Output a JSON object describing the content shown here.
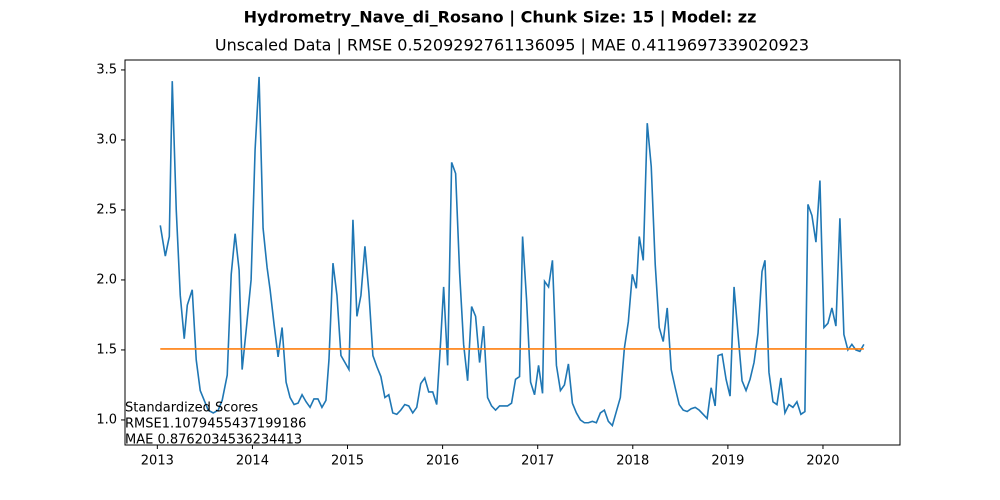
{
  "chart_data": {
    "type": "line",
    "title": "Hydrometry_Nave_di_Rosano | Chunk Size: 15 | Model: zz",
    "subtitle": "Unscaled Data | RMSE 0.5209292761136095 | MAE 0.4119697339020923",
    "annotations": [
      "Standardized Scores",
      "RMSE1.1079455437199186",
      "MAE 0.8762034536234413"
    ],
    "xlim": [
      2012.66,
      2020.81
    ],
    "xticks": [
      2013,
      2014,
      2015,
      2016,
      2017,
      2018,
      2019,
      2020
    ],
    "ylim": [
      0.821,
      3.571
    ],
    "yticks": [
      {
        "value": 1,
        "label": "1.0"
      },
      1.5,
      {
        "value": 2,
        "label": "2.0"
      },
      2.5,
      {
        "value": 3,
        "label": "3.0"
      },
      3.5
    ],
    "grid": false,
    "series": [
      {
        "color": "#1f77b4",
        "x": [
          2013.031,
          2013.084,
          2013.126,
          2013.157,
          2013.199,
          2013.241,
          2013.283,
          2013.315,
          2013.367,
          2013.409,
          2013.451,
          2013.493,
          2013.535,
          2013.588,
          2013.64,
          2013.682,
          2013.735,
          2013.777,
          2013.818,
          2013.86,
          2013.892,
          2013.934,
          2013.986,
          2014.028,
          2014.07,
          2014.112,
          2014.154,
          2014.186,
          2014.228,
          2014.27,
          2014.312,
          2014.354,
          2014.396,
          2014.438,
          2014.48,
          2014.522,
          2014.564,
          2014.606,
          2014.647,
          2014.689,
          2014.731,
          2014.773,
          2014.805,
          2014.847,
          2014.889,
          2014.931,
          2014.973,
          2015.015,
          2015.057,
          2015.099,
          2015.141,
          2015.183,
          2015.225,
          2015.267,
          2015.309,
          2015.351,
          2015.393,
          2015.434,
          2015.476,
          2015.518,
          2015.56,
          2015.602,
          2015.644,
          2015.686,
          2015.728,
          2015.77,
          2015.812,
          2015.854,
          2015.896,
          2015.938,
          2015.98,
          2016.011,
          2016.053,
          2016.095,
          2016.137,
          2016.179,
          2016.221,
          2016.263,
          2016.305,
          2016.347,
          2016.389,
          2016.431,
          2016.473,
          2016.515,
          2016.557,
          2016.599,
          2016.641,
          2016.683,
          2016.725,
          2016.767,
          2016.809,
          2016.841,
          2016.883,
          2016.925,
          2016.967,
          2017.009,
          2017.051,
          2017.072,
          2017.114,
          2017.155,
          2017.197,
          2017.239,
          2017.281,
          2017.323,
          2017.365,
          2017.407,
          2017.449,
          2017.491,
          2017.533,
          2017.575,
          2017.617,
          2017.659,
          2017.701,
          2017.743,
          2017.785,
          2017.827,
          2017.869,
          2017.911,
          2017.953,
          2017.995,
          2018.037,
          2018.068,
          2018.11,
          2018.152,
          2018.194,
          2018.236,
          2018.278,
          2018.32,
          2018.362,
          2018.404,
          2018.446,
          2018.488,
          2018.53,
          2018.572,
          2018.614,
          2018.656,
          2018.698,
          2018.74,
          2018.782,
          2018.824,
          2018.866,
          2018.897,
          2018.939,
          2018.981,
          2019.023,
          2019.065,
          2019.107,
          2019.149,
          2019.191,
          2019.233,
          2019.275,
          2019.317,
          2019.359,
          2019.39,
          2019.432,
          2019.474,
          2019.516,
          2019.558,
          2019.6,
          2019.642,
          2019.684,
          2019.726,
          2019.768,
          2019.81,
          2019.842,
          2019.884,
          2019.926,
          2019.968,
          2020.01,
          2020.052,
          2020.094,
          2020.136,
          2020.178,
          2020.22,
          2020.262,
          2020.304,
          2020.346,
          2020.388,
          2020.43
        ],
        "values": [
          2.39,
          2.17,
          2.31,
          3.42,
          2.5,
          1.89,
          1.58,
          1.82,
          1.93,
          1.43,
          1.21,
          1.14,
          1.07,
          1.05,
          1.07,
          1.14,
          1.32,
          2.04,
          2.33,
          2.07,
          1.36,
          1.64,
          2.0,
          2.93,
          3.45,
          2.37,
          2.09,
          1.93,
          1.68,
          1.45,
          1.66,
          1.27,
          1.16,
          1.11,
          1.12,
          1.18,
          1.13,
          1.09,
          1.15,
          1.15,
          1.09,
          1.14,
          1.43,
          2.12,
          1.89,
          1.46,
          1.41,
          1.36,
          2.43,
          1.74,
          1.89,
          2.24,
          1.91,
          1.46,
          1.38,
          1.31,
          1.16,
          1.18,
          1.05,
          1.04,
          1.07,
          1.11,
          1.1,
          1.05,
          1.09,
          1.26,
          1.3,
          1.2,
          1.2,
          1.11,
          1.57,
          1.95,
          1.39,
          2.84,
          2.76,
          2.05,
          1.54,
          1.28,
          1.81,
          1.74,
          1.41,
          1.67,
          1.16,
          1.1,
          1.07,
          1.1,
          1.1,
          1.1,
          1.12,
          1.29,
          1.31,
          2.31,
          1.86,
          1.27,
          1.18,
          1.39,
          1.19,
          1.99,
          1.95,
          2.14,
          1.39,
          1.21,
          1.25,
          1.4,
          1.12,
          1.05,
          1.0,
          0.98,
          0.98,
          0.99,
          0.98,
          1.05,
          1.07,
          0.99,
          0.96,
          1.06,
          1.16,
          1.51,
          1.7,
          2.04,
          1.94,
          2.31,
          2.14,
          3.12,
          2.81,
          2.11,
          1.66,
          1.56,
          1.8,
          1.36,
          1.23,
          1.11,
          1.07,
          1.06,
          1.08,
          1.09,
          1.07,
          1.04,
          1.01,
          1.23,
          1.1,
          1.46,
          1.47,
          1.29,
          1.17,
          1.95,
          1.61,
          1.28,
          1.21,
          1.29,
          1.41,
          1.62,
          2.06,
          2.14,
          1.34,
          1.13,
          1.11,
          1.3,
          1.05,
          1.11,
          1.09,
          1.13,
          1.04,
          1.06,
          2.54,
          2.46,
          2.27,
          2.71,
          1.66,
          1.69,
          1.8,
          1.67,
          2.44,
          1.61,
          1.5,
          1.54,
          1.5,
          1.49,
          1.54
        ]
      },
      {
        "color": "#ff7f0e",
        "x": [
          2013.031,
          2020.43
        ],
        "values": [
          1.507,
          1.507
        ]
      }
    ]
  }
}
